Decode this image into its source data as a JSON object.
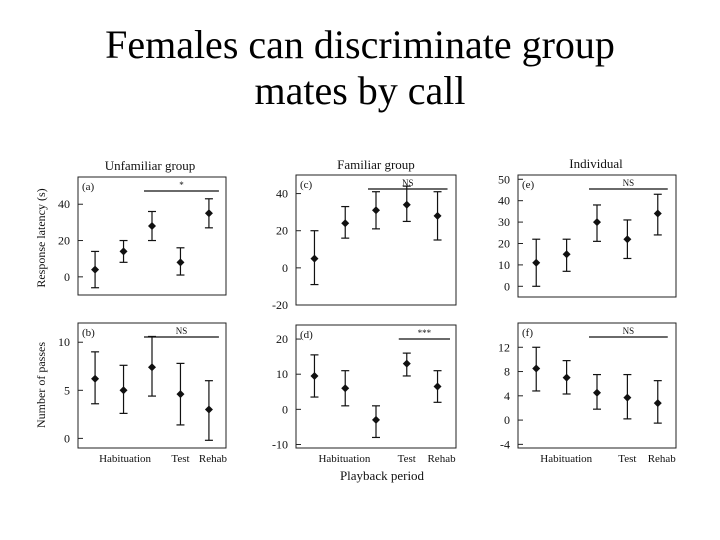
{
  "slide": {
    "title_line1": "Females can discriminate group",
    "title_line2": "mates by call"
  },
  "figure": {
    "column_titles": [
      "Unfamiliar group",
      "Familiar group",
      "Individual"
    ],
    "row_ylabels": [
      "Response latency (s)",
      "Number of passes"
    ],
    "xlabel": "Playback period"
  },
  "chart_data": [
    {
      "type": "scatter",
      "label": "(a)",
      "ylim": [
        -10,
        55
      ],
      "yticks": [
        0,
        20,
        40
      ],
      "categories": [
        "Habituation",
        "",
        "",
        "Test",
        "Rehab"
      ],
      "values": [
        4,
        14,
        28,
        8,
        35
      ],
      "error_low": [
        -6,
        8,
        20,
        1,
        27
      ],
      "error_high": [
        14,
        20,
        36,
        16,
        43
      ],
      "significance": "*",
      "significance_span": [
        2,
        4
      ]
    },
    {
      "type": "scatter",
      "label": "(c)",
      "ylim": [
        -20,
        50
      ],
      "yticks": [
        -20,
        0,
        20,
        40
      ],
      "categories": [
        "Habituation",
        "",
        "",
        "Test",
        "Rehab"
      ],
      "values": [
        5,
        24,
        31,
        34,
        28
      ],
      "error_low": [
        -9,
        16,
        21,
        25,
        15
      ],
      "error_high": [
        20,
        33,
        41,
        44,
        41
      ],
      "significance": "NS",
      "significance_span": [
        2,
        4
      ]
    },
    {
      "type": "scatter",
      "label": "(e)",
      "ylim": [
        -5,
        52
      ],
      "yticks": [
        0,
        10,
        20,
        30,
        40,
        50
      ],
      "categories": [
        "Habituation",
        "",
        "",
        "Test",
        "Rehab"
      ],
      "values": [
        11,
        15,
        30,
        22,
        34
      ],
      "error_low": [
        0,
        7,
        21,
        13,
        24
      ],
      "error_high": [
        22,
        22,
        38,
        31,
        43
      ],
      "significance": "NS",
      "significance_span": [
        2,
        4
      ]
    },
    {
      "type": "scatter",
      "label": "(b)",
      "ylim": [
        -1,
        12
      ],
      "yticks": [
        0,
        5,
        10
      ],
      "categories": [
        "Habituation",
        "",
        "",
        "Test",
        "Rehab"
      ],
      "values": [
        6.2,
        5,
        7.4,
        4.6,
        3
      ],
      "error_low": [
        3.6,
        2.6,
        4.4,
        1.4,
        -0.2
      ],
      "error_high": [
        9,
        7.6,
        10.6,
        7.8,
        6
      ],
      "significance": "NS",
      "significance_span": [
        2,
        4
      ]
    },
    {
      "type": "scatter",
      "label": "(d)",
      "ylim": [
        -11,
        24
      ],
      "yticks": [
        -10,
        0,
        10,
        20
      ],
      "categories": [
        "Habituation",
        "",
        "",
        "Test",
        "Rehab"
      ],
      "values": [
        9.5,
        6,
        -3,
        13,
        6.5
      ],
      "error_low": [
        3.5,
        1,
        -8,
        9.5,
        2
      ],
      "error_high": [
        15.5,
        11,
        1,
        16,
        11
      ],
      "significance": "***",
      "significance_span": [
        3,
        5
      ]
    },
    {
      "type": "scatter",
      "label": "(f)",
      "ylim": [
        -4.6,
        16
      ],
      "yticks": [
        -4,
        0,
        4,
        8,
        12
      ],
      "categories": [
        "Habituation",
        "",
        "",
        "Test",
        "Rehab"
      ],
      "values": [
        8.5,
        7,
        4.5,
        3.7,
        2.8
      ],
      "error_low": [
        4.8,
        4.3,
        1.8,
        0.2,
        -0.5
      ],
      "error_high": [
        12,
        9.8,
        7.5,
        7.5,
        6.5
      ],
      "significance": "NS",
      "significance_span": [
        2,
        4
      ]
    }
  ]
}
